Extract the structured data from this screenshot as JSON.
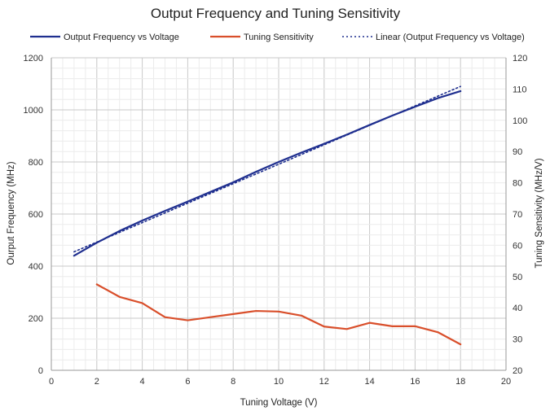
{
  "chart_data": {
    "type": "line",
    "title": "Output Frequency and Tuning Sensitivity",
    "xlabel": "Tuning Voltage (V)",
    "ylabel_left": "Ourput Frequency (MHz)",
    "ylabel_right": "Tuning Sensitivity (MHz/V)",
    "xlim": [
      0,
      20
    ],
    "ylim_left": [
      0,
      1200
    ],
    "ylim_right": [
      20,
      120
    ],
    "x_ticks": [
      0,
      2,
      4,
      6,
      8,
      10,
      12,
      14,
      16,
      18,
      20
    ],
    "y_left_ticks": [
      0,
      200,
      400,
      600,
      800,
      1000,
      1200
    ],
    "y_right_ticks": [
      20,
      30,
      40,
      50,
      60,
      70,
      80,
      90,
      100,
      110,
      120
    ],
    "grid": true,
    "legend_position": "top",
    "series": [
      {
        "name": "Output Frequency vs Voltage",
        "axis": "left",
        "color": "#1f2f8f",
        "style": "solid",
        "x": [
          1,
          2,
          3,
          4,
          5,
          6,
          7,
          8,
          9,
          10,
          11,
          12,
          13,
          14,
          15,
          16,
          17,
          18
        ],
        "values": [
          440,
          490,
          535,
          575,
          612,
          648,
          685,
          722,
          762,
          800,
          836,
          870,
          905,
          942,
          978,
          1012,
          1045,
          1072
        ]
      },
      {
        "name": "Tuning Sensitivity",
        "axis": "right",
        "color": "#d94f2b",
        "style": "solid",
        "x": [
          2,
          3,
          4,
          5,
          6,
          7,
          8,
          9,
          10,
          11,
          12,
          13,
          14,
          15,
          16,
          17,
          18
        ],
        "values": [
          47.5,
          43.5,
          41.5,
          37,
          36,
          37,
          38,
          39,
          38.8,
          37.5,
          34,
          33.2,
          35.2,
          34.1,
          34.1,
          32.2,
          28.3
        ]
      },
      {
        "name": "Linear (Output Frequency vs Voltage)",
        "axis": "left",
        "color": "#1f2f8f",
        "style": "dotted",
        "x": [
          1,
          18
        ],
        "values": [
          455,
          1090
        ]
      }
    ]
  }
}
